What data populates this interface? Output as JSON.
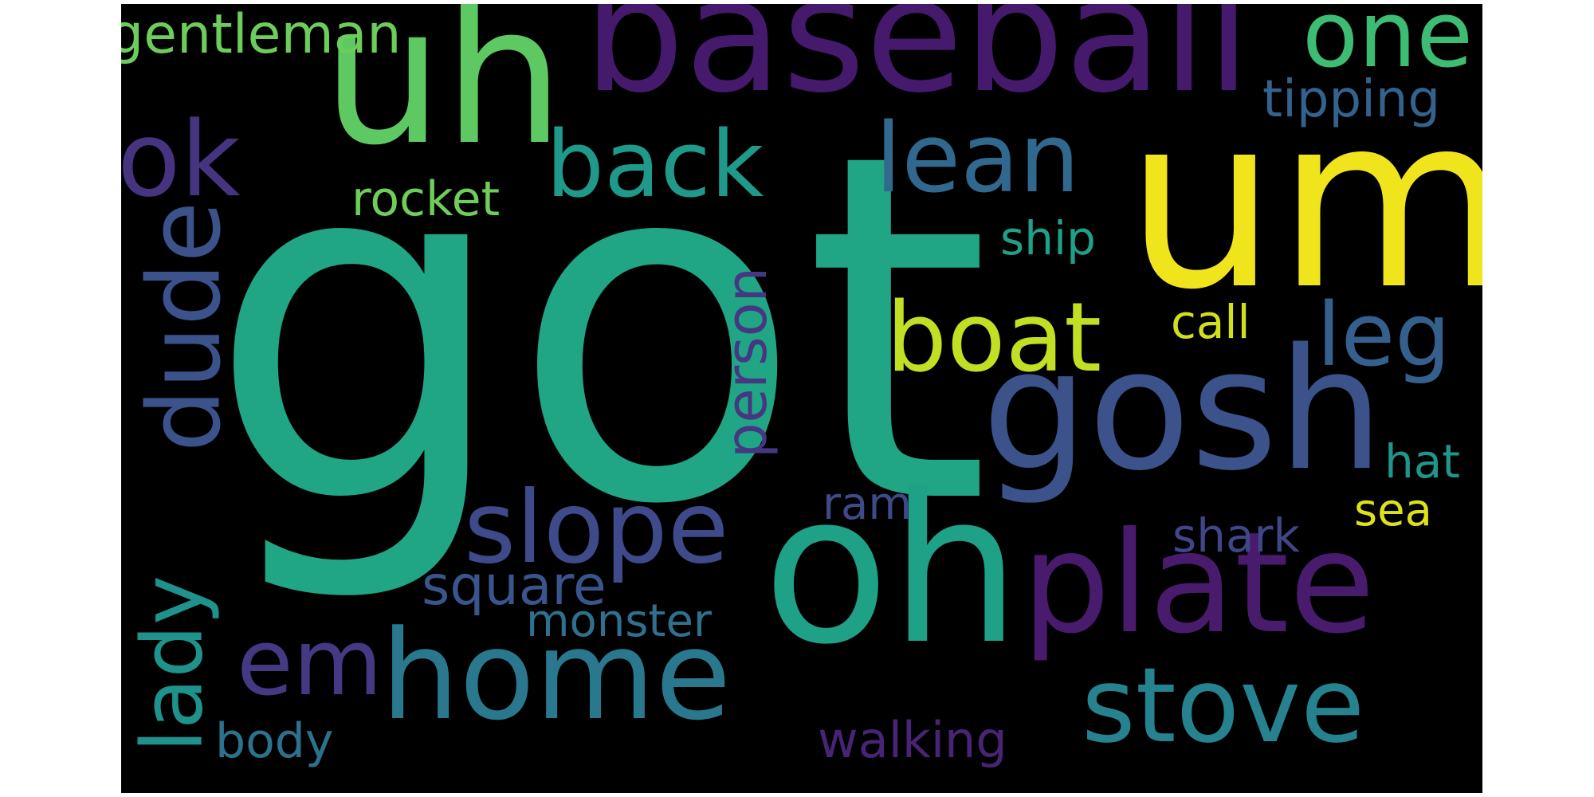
{
  "words": [
    {
      "text": "got",
      "color": "#21a685"
    },
    {
      "text": "um",
      "color": "#f0e51c"
    },
    {
      "text": "baseball",
      "color": "#451a6d"
    },
    {
      "text": "uh",
      "color": "#5ec962"
    },
    {
      "text": "oh",
      "color": "#1fa187"
    },
    {
      "text": "gosh",
      "color": "#3b528b"
    },
    {
      "text": "plate",
      "color": "#481b6d"
    },
    {
      "text": "home",
      "color": "#2a788e"
    },
    {
      "text": "stove",
      "color": "#26828e"
    },
    {
      "text": "one",
      "color": "#3dbc74"
    },
    {
      "text": "ok",
      "color": "#463480"
    },
    {
      "text": "back",
      "color": "#1f9a8a"
    },
    {
      "text": "lean",
      "color": "#31688e"
    },
    {
      "text": "boat",
      "color": "#c2df23"
    },
    {
      "text": "leg",
      "color": "#355f8d"
    },
    {
      "text": "slope",
      "color": "#3e4a89"
    },
    {
      "text": "em",
      "color": "#443983"
    },
    {
      "text": "gentleman",
      "color": "#6ccd5a"
    },
    {
      "text": "tipping",
      "color": "#33638d"
    },
    {
      "text": "rocket",
      "color": "#6ece58"
    },
    {
      "text": "ship",
      "color": "#1fa088"
    },
    {
      "text": "call",
      "color": "#d0e11c"
    },
    {
      "text": "hat",
      "color": "#1f958b"
    },
    {
      "text": "ram",
      "color": "#3e4a89"
    },
    {
      "text": "sea",
      "color": "#dde318"
    },
    {
      "text": "shark",
      "color": "#3f4788"
    },
    {
      "text": "square",
      "color": "#3a548c"
    },
    {
      "text": "monster",
      "color": "#2d718e"
    },
    {
      "text": "walking",
      "color": "#482475"
    },
    {
      "text": "body",
      "color": "#2c728e"
    },
    {
      "text": "dude",
      "color": "#3b528b"
    },
    {
      "text": "person",
      "color": "#453781"
    },
    {
      "text": "lady",
      "color": "#20928c"
    }
  ]
}
